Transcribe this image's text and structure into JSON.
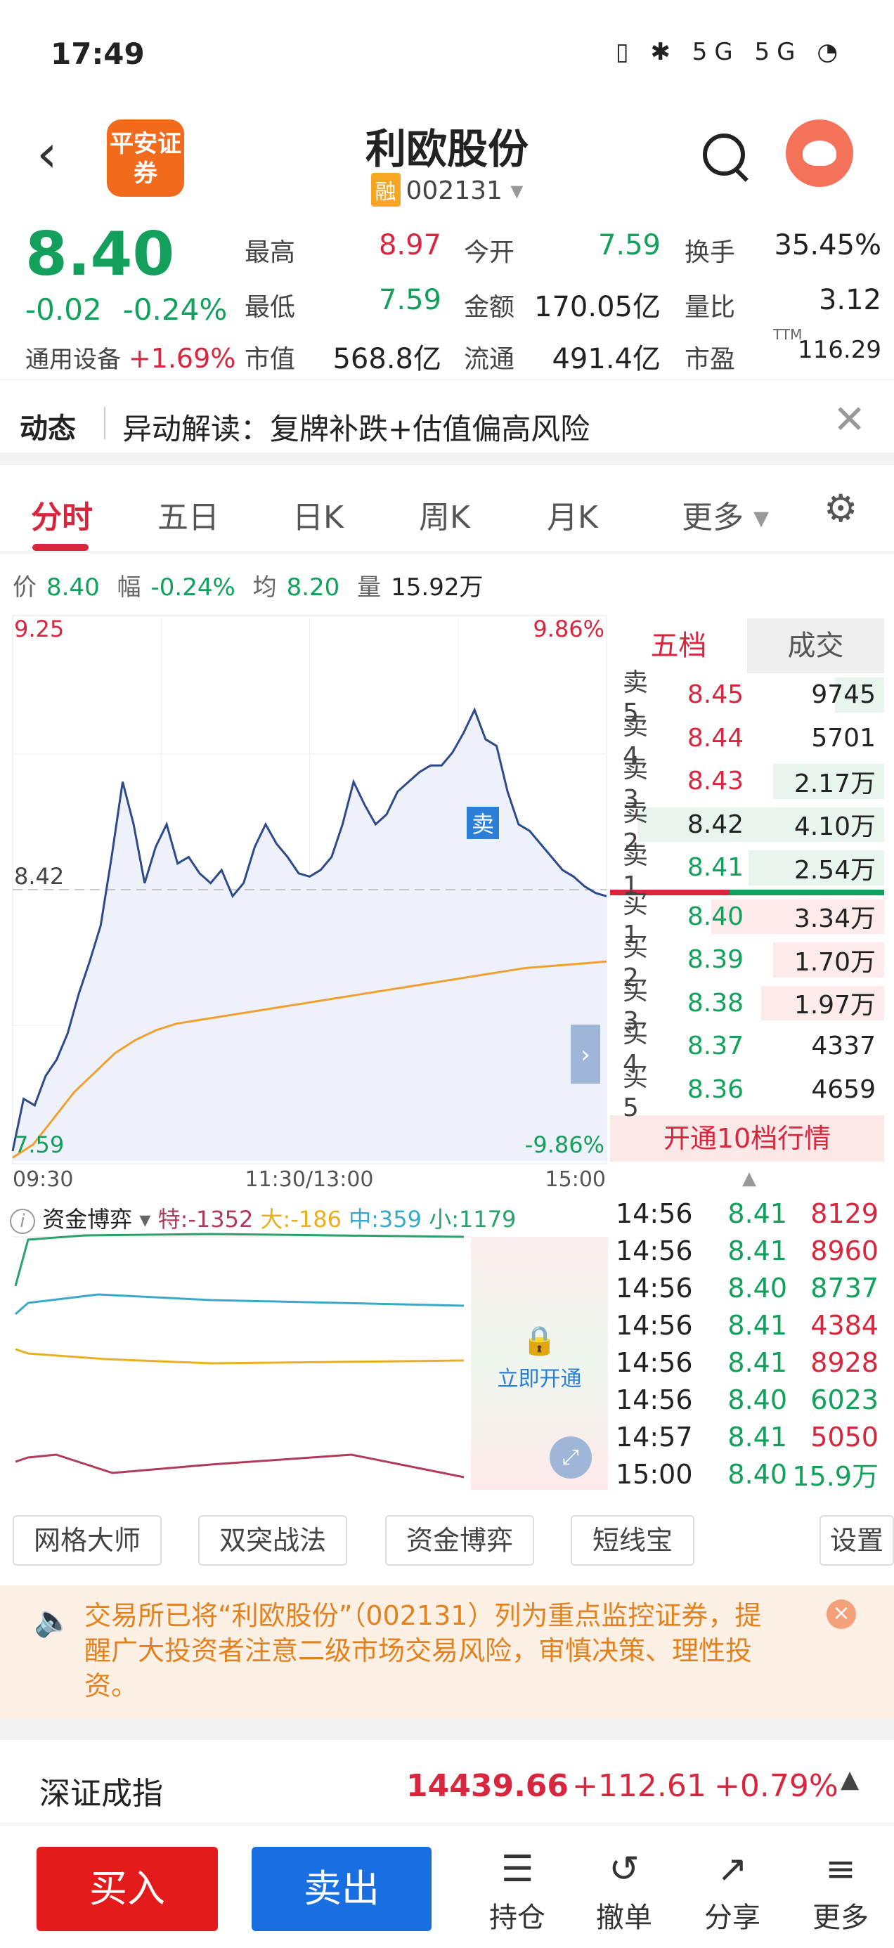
{
  "status_bar": {
    "time": "17:49",
    "icons": "▯ ✱ 5G 5G ◔"
  },
  "header": {
    "back": "‹",
    "logo": "平安证券",
    "stock_name": "利欧股份",
    "rong_badge": "融",
    "code": "002131",
    "code_caret": "▾"
  },
  "quote": {
    "price": "8.40",
    "change": "-0.02",
    "change_pct": "-0.24%",
    "industry_label": "通用设备",
    "industry_change": "+1.69%",
    "fields": [
      {
        "label": "最高",
        "value": "8.97",
        "color": "red"
      },
      {
        "label": "今开",
        "value": "7.59",
        "color": "green"
      },
      {
        "label": "换手",
        "value": "35.45%",
        "color": "dark"
      },
      {
        "label": "最低",
        "value": "7.59",
        "color": "green"
      },
      {
        "label": "金额",
        "value": "170.05亿",
        "color": "dark"
      },
      {
        "label": "量比",
        "value": "3.12",
        "color": "dark"
      },
      {
        "label": "市值",
        "value": "568.8亿",
        "color": "dark"
      },
      {
        "label": "流通",
        "value": "491.4亿",
        "color": "dark"
      },
      {
        "label": "市盈",
        "value": "116.29",
        "color": "dark"
      }
    ],
    "pe_sup": "TTM"
  },
  "dynamic": {
    "label": "动态",
    "text": "异动解读：复牌补跌+估值偏高风险",
    "close": "✕"
  },
  "tabs": [
    "分时",
    "五日",
    "日K",
    "周K",
    "月K",
    "更多"
  ],
  "tabs_more_caret": "▾",
  "chart_info": {
    "price_label": "价",
    "price": "8.40",
    "amp_label": "幅",
    "amp": "-0.24%",
    "avg_label": "均",
    "avg": "8.20",
    "vol_label": "量",
    "vol": "15.92万"
  },
  "chart_data": {
    "type": "line",
    "y_top": "9.25",
    "y_top_pct": "9.86%",
    "y_bottom": "7.59",
    "y_bottom_pct": "-9.86%",
    "ref_price": "8.42",
    "ylim": [
      7.59,
      9.25
    ],
    "x_labels": [
      "09:30",
      "11:30/13:00",
      "15:00"
    ],
    "sell_marker": "卖",
    "series": [
      {
        "values": [
          7.62,
          7.78,
          7.76,
          7.85,
          7.9,
          7.98,
          8.1,
          8.2,
          8.31,
          8.52,
          8.75,
          8.62,
          8.44,
          8.55,
          8.62,
          8.5,
          8.52,
          8.47,
          8.44,
          8.48,
          8.4,
          8.44,
          8.55,
          8.62,
          8.56,
          8.52,
          8.47,
          8.46,
          8.48,
          8.52,
          8.62,
          8.75,
          8.68,
          8.62,
          8.65,
          8.72,
          8.75,
          8.78,
          8.8,
          8.8,
          8.84,
          8.9,
          8.97,
          8.88,
          8.86,
          8.72,
          8.62,
          8.6,
          8.56,
          8.52,
          8.48,
          8.46,
          8.43,
          8.41,
          8.4
        ]
      },
      {
        "values": [
          7.6,
          7.64,
          7.72,
          7.8,
          7.86,
          7.92,
          7.96,
          7.99,
          8.01,
          8.02,
          8.03,
          8.04,
          8.05,
          8.06,
          8.07,
          8.08,
          8.09,
          8.1,
          8.11,
          8.12,
          8.13,
          8.14,
          8.15,
          8.16,
          8.17,
          8.18,
          8.185,
          8.19,
          8.195,
          8.2
        ]
      }
    ]
  },
  "order_book": {
    "tab_active": "五档",
    "tab_other": "成交",
    "asks": [
      {
        "label": "卖5",
        "price": "8.45",
        "vol": "9745",
        "pc": "red",
        "bar": 0.2
      },
      {
        "label": "卖4",
        "price": "8.44",
        "vol": "5701",
        "pc": "red",
        "bar": 0
      },
      {
        "label": "卖3",
        "price": "8.43",
        "vol": "2.17万",
        "pc": "red",
        "bar": 0.45
      },
      {
        "label": "卖2",
        "price": "8.42",
        "vol": "4.10万",
        "pc": "dark",
        "bar": 1.0
      },
      {
        "label": "卖1",
        "price": "8.41",
        "vol": "2.54万",
        "pc": "green",
        "bar": 0.55
      }
    ],
    "bids": [
      {
        "label": "买1",
        "price": "8.40",
        "vol": "3.34万",
        "pc": "green",
        "bar": 0.7
      },
      {
        "label": "买2",
        "price": "8.39",
        "vol": "1.70万",
        "pc": "green",
        "bar": 0.45
      },
      {
        "label": "买3",
        "price": "8.38",
        "vol": "1.97万",
        "pc": "green",
        "bar": 0.5
      },
      {
        "label": "买4",
        "price": "8.37",
        "vol": "4337",
        "pc": "green",
        "bar": 0
      },
      {
        "label": "买5",
        "price": "8.36",
        "vol": "4659",
        "pc": "green",
        "bar": 0
      }
    ],
    "open10": "开通10档行情"
  },
  "ticks": [
    {
      "t": "14:56",
      "p": "8.41",
      "v": "8129",
      "vc": "red"
    },
    {
      "t": "14:56",
      "p": "8.41",
      "v": "8960",
      "vc": "red"
    },
    {
      "t": "14:56",
      "p": "8.40",
      "v": "8737",
      "vc": "green"
    },
    {
      "t": "14:56",
      "p": "8.41",
      "v": "4384",
      "vc": "red"
    },
    {
      "t": "14:56",
      "p": "8.41",
      "v": "8928",
      "vc": "red"
    },
    {
      "t": "14:56",
      "p": "8.40",
      "v": "6023",
      "vc": "green"
    },
    {
      "t": "14:57",
      "p": "8.41",
      "v": "5050",
      "vc": "red"
    },
    {
      "t": "15:00",
      "p": "8.40",
      "v": "15.9万",
      "vc": "green"
    }
  ],
  "capital_flow": {
    "info": "i",
    "title": "资金博弈",
    "caret": "▾",
    "te": "特:-1352",
    "da": "大:-186",
    "zhong": "中:359",
    "xiao": "小:1179",
    "unlock": "立即开通"
  },
  "tools": [
    "网格大师",
    "双突战法",
    "资金博弈",
    "短线宝",
    "设置"
  ],
  "notice": {
    "text": "交易所已将“利欧股份”（002131）列为重点监控证券，提醒广大投资者注意二级市场交易风险，审慎决策、理性投资。",
    "close": "×"
  },
  "index_bar": {
    "name": "深证成指",
    "value": "14439.66",
    "change": "+112.61",
    "pct": "+0.79%",
    "arrow": "▲"
  },
  "bottom": {
    "buy": "买入",
    "sell": "卖出",
    "actions": [
      {
        "label": "持仓",
        "glyph": "☰"
      },
      {
        "label": "撤单",
        "glyph": "↺"
      },
      {
        "label": "分享",
        "glyph": "↗"
      },
      {
        "label": "更多",
        "glyph": "≡"
      }
    ]
  }
}
